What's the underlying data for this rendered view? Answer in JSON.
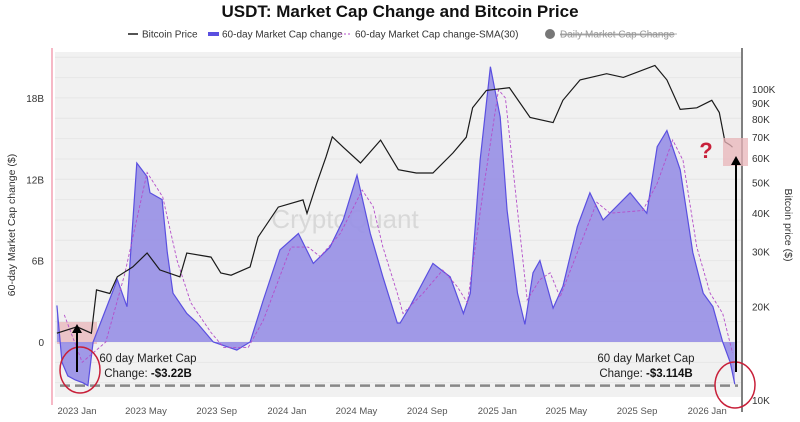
{
  "chart_data": {
    "type": "area",
    "title": "USDT: Market Cap Change and Bitcoin Price",
    "legend": {
      "placement": "top",
      "entries": [
        "Bitcoin Price",
        "60-day Market Cap change",
        "60-day Market Cap change-SMA(30)",
        "Daily Market Cap Change"
      ],
      "hidden_entries": [
        "Daily Market Cap Change"
      ]
    },
    "ylabel_left": "60-day Market Cap change ($)",
    "ylabel_right": "Bitcoin price ($)",
    "yticks_left": [
      {
        "value": 0,
        "label": "0"
      },
      {
        "value": 6,
        "label": "6B"
      },
      {
        "value": 12,
        "label": "12B"
      },
      {
        "value": 18,
        "label": "18B"
      }
    ],
    "yticks_right": [
      {
        "value": 10000,
        "label": "10K"
      },
      {
        "value": 20000,
        "label": "20K"
      },
      {
        "value": 30000,
        "label": "30K"
      },
      {
        "value": 40000,
        "label": "40K"
      },
      {
        "value": 50000,
        "label": "50K"
      },
      {
        "value": 60000,
        "label": "60K"
      },
      {
        "value": 70000,
        "label": "70K"
      },
      {
        "value": 80000,
        "label": "80K"
      },
      {
        "value": 90000,
        "label": "90K"
      },
      {
        "value": 100000,
        "label": "100K"
      }
    ],
    "right_axis_scale": "log",
    "xticks": [
      {
        "date": "2023-01-01",
        "label": "2023 Jan"
      },
      {
        "date": "2023-05-01",
        "label": "2023 May"
      },
      {
        "date": "2023-09-01",
        "label": "2023 Sep"
      },
      {
        "date": "2024-01-01",
        "label": "2024 Jan"
      },
      {
        "date": "2024-05-01",
        "label": "2024 May"
      },
      {
        "date": "2024-09-01",
        "label": "2024 Sep"
      },
      {
        "date": "2025-01-01",
        "label": "2025 Jan"
      },
      {
        "date": "2025-05-01",
        "label": "2025 May"
      },
      {
        "date": "2025-09-01",
        "label": "2025 Sep"
      },
      {
        "date": "2026-01-01",
        "label": "2026 Jan"
      }
    ],
    "ylim_left_billions": [
      -4.2,
      21
    ],
    "ylim_right": [
      10000,
      130000
    ],
    "grid": "horizontal",
    "colors": {
      "btc": "#1a1a1a",
      "mcap_fill": "#9b94e6",
      "mcap_line": "#5a4fe0",
      "sma": "#b44fc9",
      "annotation": "#c8203a",
      "highlight": "#e8b4b8"
    },
    "series": [
      {
        "name": "60-day Market Cap change",
        "unit": "B USD",
        "points": [
          [
            "2022-11-27",
            2.7
          ],
          [
            "2022-12-06",
            -1.5
          ],
          [
            "2022-12-16",
            -2.5
          ],
          [
            "2022-12-29",
            -2.8
          ],
          [
            "2023-01-11",
            -3.0
          ],
          [
            "2023-01-20",
            -3.22
          ],
          [
            "2023-01-29",
            0
          ],
          [
            "2023-03-12",
            4.6
          ],
          [
            "2023-03-29",
            2.6
          ],
          [
            "2023-04-15",
            13.2
          ],
          [
            "2023-05-03",
            12.2
          ],
          [
            "2023-05-08",
            11
          ],
          [
            "2023-05-29",
            10.5
          ],
          [
            "2023-06-07",
            6.6
          ],
          [
            "2023-06-17",
            3.6
          ],
          [
            "2023-07-11",
            2.1
          ],
          [
            "2023-07-29",
            1.4
          ],
          [
            "2023-08-26",
            0
          ],
          [
            "2023-10-06",
            -0.6
          ],
          [
            "2023-10-29",
            0
          ],
          [
            "2023-11-21",
            3.1
          ],
          [
            "2023-12-20",
            6.8
          ],
          [
            "2024-01-21",
            8
          ],
          [
            "2024-02-16",
            5.8
          ],
          [
            "2024-03-16",
            7
          ],
          [
            "2024-04-08",
            9
          ],
          [
            "2024-05-02",
            12.3
          ],
          [
            "2024-05-25",
            8
          ],
          [
            "2024-06-16",
            4.8
          ],
          [
            "2024-07-11",
            1.4
          ],
          [
            "2024-07-16",
            1.4
          ],
          [
            "2024-08-02",
            2.6
          ],
          [
            "2024-09-11",
            5.8
          ],
          [
            "2024-10-11",
            4.8
          ],
          [
            "2024-11-03",
            2.1
          ],
          [
            "2024-11-15",
            3.6
          ],
          [
            "2024-12-02",
            13.4
          ],
          [
            "2024-12-20",
            20.3
          ],
          [
            "2025-01-06",
            16.6
          ],
          [
            "2025-01-18",
            9.7
          ],
          [
            "2025-02-05",
            3.6
          ],
          [
            "2025-02-18",
            1.3
          ],
          [
            "2025-03-04",
            5.1
          ],
          [
            "2025-03-16",
            6
          ],
          [
            "2025-04-08",
            2.5
          ],
          [
            "2025-04-25",
            4.1
          ],
          [
            "2025-05-20",
            8.5
          ],
          [
            "2025-06-11",
            11
          ],
          [
            "2025-07-04",
            9
          ],
          [
            "2025-08-20",
            11
          ],
          [
            "2025-09-18",
            9.5
          ],
          [
            "2025-10-06",
            14.4
          ],
          [
            "2025-10-23",
            15.6
          ],
          [
            "2025-11-15",
            12.7
          ],
          [
            "2025-12-07",
            6.6
          ],
          [
            "2025-12-25",
            3.6
          ],
          [
            "2026-01-11",
            2.6
          ],
          [
            "2026-01-28",
            0
          ],
          [
            "2026-02-10",
            -1.5
          ],
          [
            "2026-02-18",
            -3.114
          ]
        ]
      },
      {
        "name": "60-day Market Cap change-SMA(30)",
        "unit": "B USD",
        "points": [
          [
            "2022-12-10",
            2.0
          ],
          [
            "2023-01-10",
            -1.5
          ],
          [
            "2023-02-20",
            0
          ],
          [
            "2023-03-25",
            5
          ],
          [
            "2023-05-03",
            12.5
          ],
          [
            "2023-05-30",
            10.7
          ],
          [
            "2023-06-24",
            6
          ],
          [
            "2023-07-18",
            2.9
          ],
          [
            "2023-08-22",
            0.7
          ],
          [
            "2023-09-13",
            -0.4
          ],
          [
            "2023-10-26",
            -0.4
          ],
          [
            "2023-11-21",
            1.6
          ],
          [
            "2024-01-08",
            7
          ],
          [
            "2024-02-07",
            7
          ],
          [
            "2024-02-28",
            6.3
          ],
          [
            "2024-04-03",
            8
          ],
          [
            "2024-05-11",
            11.2
          ],
          [
            "2024-05-30",
            10
          ],
          [
            "2024-06-16",
            7
          ],
          [
            "2024-07-11",
            3.6
          ],
          [
            "2024-07-21",
            2.1
          ],
          [
            "2024-08-25",
            3.6
          ],
          [
            "2024-09-28",
            5.3
          ],
          [
            "2024-10-23",
            4.1
          ],
          [
            "2024-11-10",
            2.9
          ],
          [
            "2024-12-07",
            11
          ],
          [
            "2025-01-03",
            18.6
          ],
          [
            "2025-01-15",
            18
          ],
          [
            "2025-02-05",
            9.7
          ],
          [
            "2025-02-22",
            3.1
          ],
          [
            "2025-03-16",
            4.6
          ],
          [
            "2025-04-03",
            5.1
          ],
          [
            "2025-04-20",
            3.3
          ],
          [
            "2025-05-20",
            6.6
          ],
          [
            "2025-06-23",
            10.3
          ],
          [
            "2025-07-16",
            9.5
          ],
          [
            "2025-09-11",
            9.7
          ],
          [
            "2025-10-06",
            11.7
          ],
          [
            "2025-11-02",
            14.9
          ],
          [
            "2025-11-20",
            13.4
          ],
          [
            "2025-12-14",
            7
          ],
          [
            "2026-01-06",
            3.6
          ],
          [
            "2026-01-28",
            2.1
          ],
          [
            "2026-02-14",
            -0.8
          ]
        ]
      },
      {
        "name": "Bitcoin Price",
        "unit": "USD",
        "axis": "right",
        "points": [
          [
            "2022-11-27",
            16400
          ],
          [
            "2023-01-01",
            17200
          ],
          [
            "2023-01-26",
            16400
          ],
          [
            "2023-02-04",
            22600
          ],
          [
            "2023-02-27",
            22000
          ],
          [
            "2023-03-12",
            24900
          ],
          [
            "2023-04-08",
            26800
          ],
          [
            "2023-05-03",
            29700
          ],
          [
            "2023-05-25",
            26200
          ],
          [
            "2023-06-29",
            24900
          ],
          [
            "2023-07-11",
            29700
          ],
          [
            "2023-08-22",
            28800
          ],
          [
            "2023-09-08",
            25600
          ],
          [
            "2023-09-26",
            25200
          ],
          [
            "2023-10-29",
            26800
          ],
          [
            "2023-11-12",
            33400
          ],
          [
            "2023-12-17",
            41700
          ],
          [
            "2024-01-29",
            44000
          ],
          [
            "2024-02-05",
            39800
          ],
          [
            "2024-02-22",
            49800
          ],
          [
            "2024-03-09",
            60500
          ],
          [
            "2024-03-20",
            70200
          ],
          [
            "2024-04-08",
            65000
          ],
          [
            "2024-05-08",
            57800
          ],
          [
            "2024-06-12",
            68500
          ],
          [
            "2024-07-13",
            55000
          ],
          [
            "2024-08-13",
            53700
          ],
          [
            "2024-09-11",
            53700
          ],
          [
            "2024-10-16",
            62300
          ],
          [
            "2024-11-08",
            70000
          ],
          [
            "2024-11-19",
            87000
          ],
          [
            "2024-12-13",
            99000
          ],
          [
            "2025-01-22",
            101000
          ],
          [
            "2025-02-27",
            81000
          ],
          [
            "2025-04-08",
            78000
          ],
          [
            "2025-04-25",
            92000
          ],
          [
            "2025-05-25",
            107000
          ],
          [
            "2025-07-10",
            112000
          ],
          [
            "2025-08-08",
            109000
          ],
          [
            "2025-10-02",
            119000
          ],
          [
            "2025-10-23",
            107000
          ],
          [
            "2025-11-15",
            86000
          ],
          [
            "2025-12-14",
            87000
          ],
          [
            "2026-01-09",
            92000
          ],
          [
            "2026-01-22",
            84000
          ],
          [
            "2026-02-01",
            67600
          ],
          [
            "2026-02-10",
            66000
          ],
          [
            "2026-02-14",
            65000
          ]
        ]
      }
    ],
    "annotations": {
      "left_label_line1": "60 day Market Cap",
      "left_label_line2": "Change: ",
      "left_value": "-$3.22B",
      "right_label_line1": "60 day Market Cap",
      "right_label_line2": "Change: ",
      "right_value": "-$3.114B",
      "question_mark": "?",
      "reference_level_billions": -3.22
    },
    "watermark": "CryptoQuant"
  }
}
